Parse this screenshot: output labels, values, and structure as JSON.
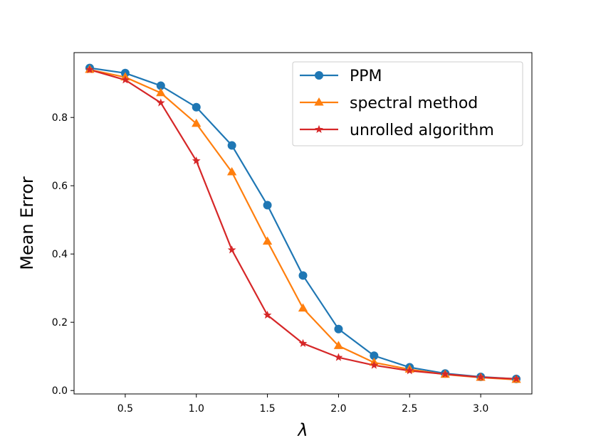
{
  "chart_data": {
    "type": "line",
    "title": "",
    "xlabel": "λ",
    "ylabel": "Mean Error",
    "xlim": [
      0.14,
      3.36
    ],
    "ylim": [
      -0.01,
      0.99
    ],
    "xticks": [
      0.5,
      1.0,
      1.5,
      2.0,
      2.5,
      3.0
    ],
    "xtick_labels": [
      "0.5",
      "1.0",
      "1.5",
      "2.0",
      "2.5",
      "3.0"
    ],
    "yticks": [
      0.0,
      0.2,
      0.4,
      0.6,
      0.8
    ],
    "ytick_labels": [
      "0.0",
      "0.2",
      "0.4",
      "0.6",
      "0.8"
    ],
    "grid": false,
    "legend_position": "top-right",
    "x": [
      0.25,
      0.5,
      0.75,
      1.0,
      1.25,
      1.5,
      1.75,
      2.0,
      2.25,
      2.5,
      2.75,
      3.0,
      3.25
    ],
    "series": [
      {
        "name": "PPM",
        "color": "#1f77b4",
        "marker": "circle",
        "values": [
          0.945,
          0.93,
          0.893,
          0.83,
          0.718,
          0.543,
          0.337,
          0.18,
          0.102,
          0.068,
          0.05,
          0.04,
          0.034
        ]
      },
      {
        "name": "spectral method",
        "color": "#ff7f0e",
        "marker": "triangle",
        "values": [
          0.94,
          0.918,
          0.872,
          0.782,
          0.64,
          0.437,
          0.241,
          0.131,
          0.082,
          0.062,
          0.047,
          0.038,
          0.032
        ]
      },
      {
        "name": "unrolled algorithm",
        "color": "#d62728",
        "marker": "star",
        "values": [
          0.94,
          0.91,
          0.843,
          0.673,
          0.412,
          0.221,
          0.138,
          0.097,
          0.074,
          0.058,
          0.048,
          0.039,
          0.034
        ]
      }
    ]
  }
}
